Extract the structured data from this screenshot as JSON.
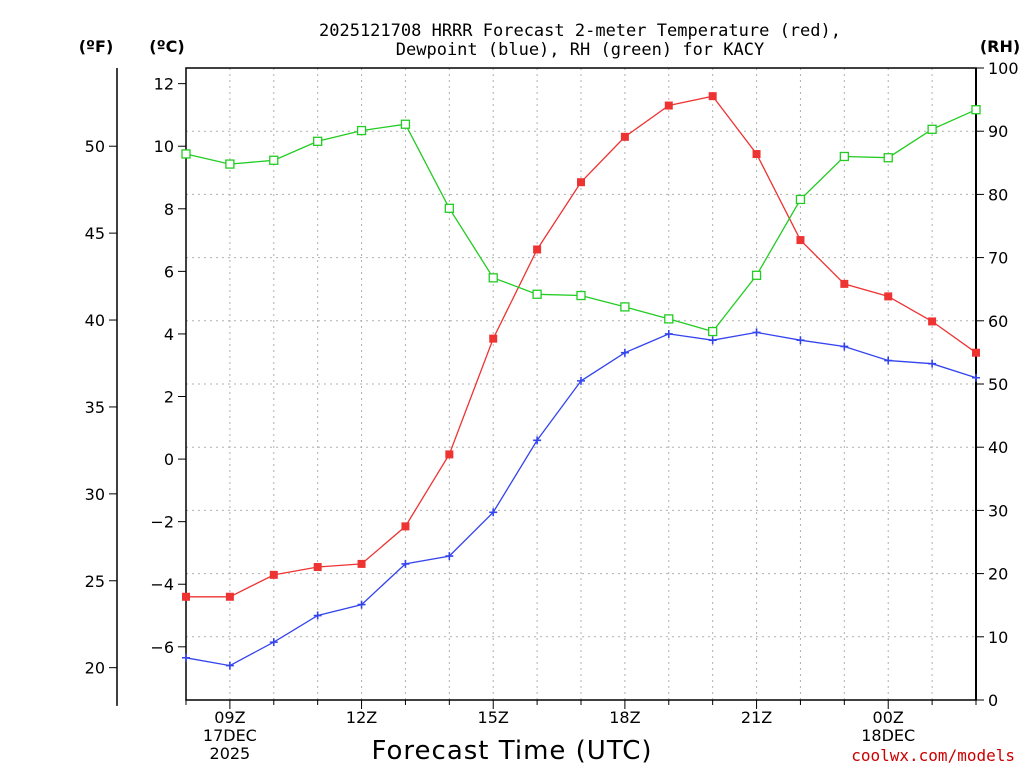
{
  "chart_data": {
    "type": "line",
    "title_lines": [
      "2025121708 HRRR Forecast 2-meter Temperature (red),",
      "Dewpoint (blue), RH (green) for KACY"
    ],
    "xlabel": "Forecast Time (UTC)",
    "credit": "coolwx.com/models",
    "unit_labels": {
      "fahrenheit": "(ºF)",
      "celsius": "(ºC)",
      "rh": "(RH)"
    },
    "x": [
      8,
      9,
      10,
      11,
      12,
      13,
      14,
      15,
      16,
      17,
      18,
      19,
      20,
      21,
      22,
      23,
      24,
      25,
      26
    ],
    "x_ticks": [
      {
        "hour": 9,
        "lines": [
          "09Z",
          "17DEC",
          "2025"
        ]
      },
      {
        "hour": 12,
        "lines": [
          "12Z"
        ]
      },
      {
        "hour": 15,
        "lines": [
          "15Z"
        ]
      },
      {
        "hour": 18,
        "lines": [
          "18Z"
        ]
      },
      {
        "hour": 21,
        "lines": [
          "21Z"
        ]
      },
      {
        "hour": 24,
        "lines": [
          "00Z",
          "18DEC"
        ]
      }
    ],
    "celsius_axis": {
      "range": [
        -7.7,
        12.5
      ],
      "ticks": [
        -6,
        -4,
        -2,
        0,
        2,
        4,
        6,
        8,
        10,
        12
      ]
    },
    "fahrenheit_axis": {
      "ticks": [
        20,
        25,
        30,
        35,
        40,
        45,
        50
      ]
    },
    "rh_axis": {
      "range": [
        0,
        100
      ],
      "ticks": [
        0,
        10,
        20,
        30,
        40,
        50,
        60,
        70,
        80,
        90,
        100
      ]
    },
    "series": [
      {
        "name": "Temperature",
        "unit": "C",
        "color": "#ee3333",
        "marker": "filled-square",
        "values": [
          -4.4,
          -4.4,
          -3.7,
          -3.45,
          -3.35,
          -2.15,
          0.15,
          3.85,
          6.7,
          8.85,
          10.3,
          11.3,
          11.6,
          9.75,
          7.0,
          5.6,
          5.2,
          4.4,
          3.4
        ]
      },
      {
        "name": "Dewpoint",
        "unit": "C",
        "color": "#3344ee",
        "marker": "plus",
        "values": [
          -6.35,
          -6.6,
          -5.85,
          -5.0,
          -4.65,
          -3.35,
          -3.1,
          -1.7,
          0.6,
          2.5,
          3.4,
          4.0,
          3.8,
          4.05,
          3.8,
          3.6,
          3.15,
          3.05,
          2.6
        ]
      },
      {
        "name": "RH",
        "unit": "%",
        "color": "#22cc22",
        "marker": "open-square",
        "values": [
          86.4,
          84.8,
          85.4,
          88.4,
          90.1,
          91.1,
          77.8,
          66.8,
          64.2,
          64.0,
          62.2,
          60.3,
          58.3,
          67.2,
          79.2,
          86.0,
          85.8,
          90.3,
          93.4
        ]
      }
    ]
  }
}
